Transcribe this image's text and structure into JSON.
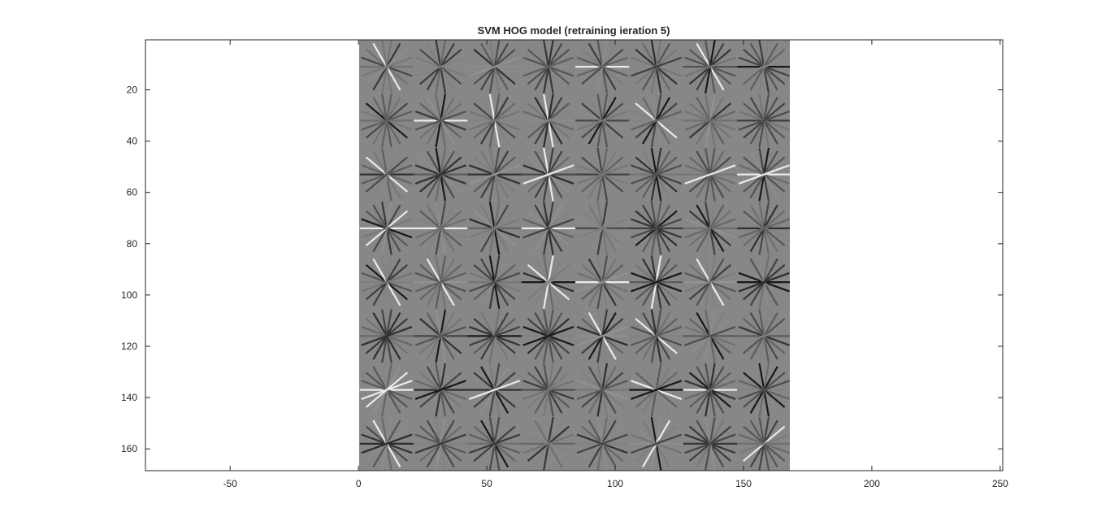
{
  "chart_data": {
    "type": "heatmap",
    "title": "SVM HOG model (retraining ieration 5)",
    "xlabel": "",
    "ylabel": "",
    "xlim": [
      -83,
      251
    ],
    "ylim": [
      0.5,
      168.5
    ],
    "y_reversed": true,
    "x_ticks": [
      -50,
      0,
      50,
      100,
      150,
      200,
      250
    ],
    "x_tick_labels": [
      "-50",
      "0",
      "50",
      "100",
      "150",
      "200",
      "250"
    ],
    "y_ticks": [
      20,
      40,
      60,
      80,
      100,
      120,
      140,
      160
    ],
    "y_tick_labels": [
      "20",
      "40",
      "60",
      "80",
      "100",
      "120",
      "140",
      "160"
    ],
    "image_x_range": [
      0.5,
      168.5
    ],
    "image_y_range": [
      0.5,
      168.5
    ],
    "cell_grid": [
      8,
      8
    ],
    "cell_size": 21,
    "grid": false,
    "colormap": "gray",
    "background_gray": "#878787"
  }
}
